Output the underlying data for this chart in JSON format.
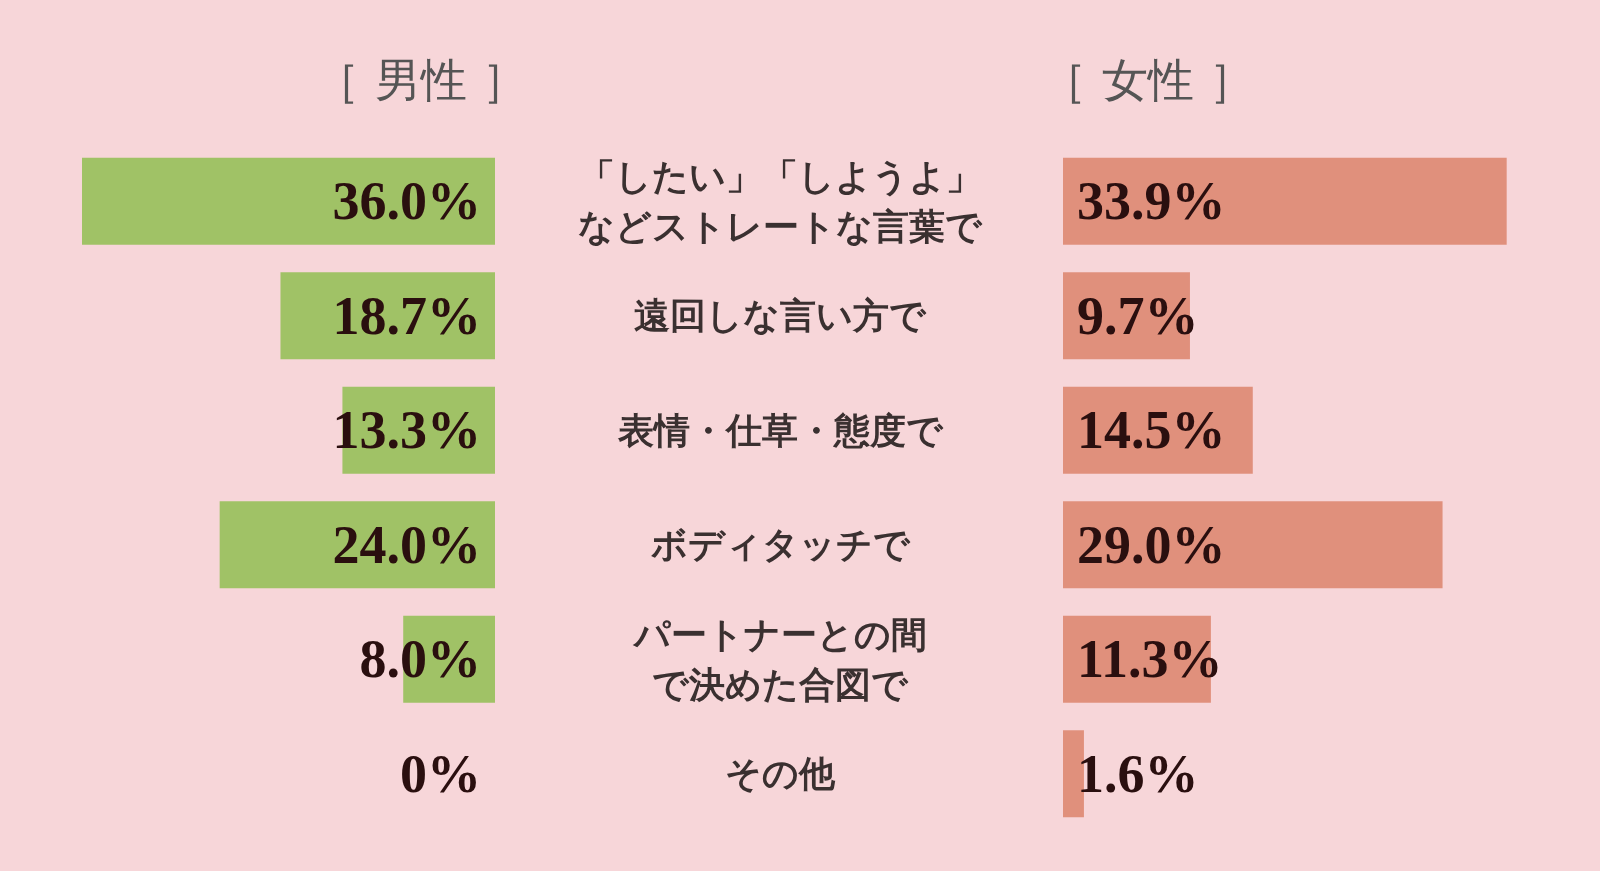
{
  "chart_data": [
    {
      "type": "bar",
      "title": "［ 男性 ］",
      "orientation": "horizontal",
      "categories": [
        "「したい」「しようよ」などストレートな言葉で",
        "遠回しな言い方で",
        "表情・仕草・態度で",
        "ボディタッチで",
        "パートナーとの間で決めた合図で",
        "その他"
      ],
      "values": [
        36.0,
        18.7,
        13.3,
        24.0,
        8.0,
        0
      ],
      "value_labels": [
        "36.0%",
        "18.7%",
        "13.3%",
        "24.0%",
        "8.0%",
        "0%"
      ],
      "color": "#a0c266",
      "xlim": [
        36,
        0
      ],
      "tick_labels": "y"
    },
    {
      "type": "bar",
      "title": "［ 女性 ］",
      "orientation": "horizontal",
      "categories": [
        null,
        null,
        null,
        null,
        null,
        null
      ],
      "values": [
        33.9,
        9.7,
        14.5,
        29.0,
        11.3,
        1.6
      ],
      "value_labels": [
        "33.9%",
        "9.7%",
        "14.5%",
        "29.0%",
        "11.3%",
        "1.6%"
      ],
      "color": "#e0907c",
      "xlim": [
        0,
        34
      ],
      "tick_labels": false
    }
  ]
}
